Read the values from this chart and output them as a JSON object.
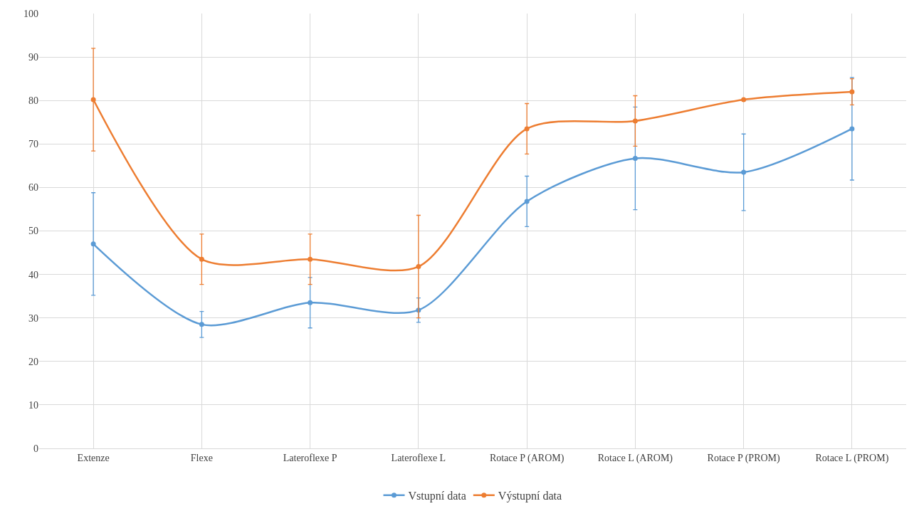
{
  "chart_data": {
    "type": "line",
    "categories": [
      "Extenze",
      "Flexe",
      "Lateroflexe P",
      "Lateroflexe L",
      "Rotace P (AROM)",
      "Rotace L (AROM)",
      "Rotace P (PROM)",
      "Rotace L (PROM)"
    ],
    "series": [
      {
        "name": "Vstupní data",
        "color": "#5b9bd5",
        "values": [
          47.0,
          28.5,
          33.5,
          31.8,
          56.8,
          66.7,
          63.5,
          73.5
        ],
        "errors": [
          11.8,
          3.0,
          5.8,
          2.8,
          5.8,
          11.8,
          8.8,
          11.8
        ]
      },
      {
        "name": "Výstupní data",
        "color": "#ed7d31",
        "values": [
          80.2,
          43.5,
          43.5,
          41.8,
          73.5,
          75.3,
          80.2,
          82.0
        ],
        "errors": [
          11.8,
          5.8,
          5.8,
          11.8,
          5.8,
          5.8,
          null,
          3.0
        ]
      }
    ],
    "ylim": [
      0,
      100
    ],
    "yticks": [
      0,
      10,
      20,
      30,
      40,
      50,
      60,
      70,
      80,
      90,
      100
    ],
    "grid": true,
    "legend": "bottom",
    "marker": "circle",
    "line_style": "solid"
  }
}
